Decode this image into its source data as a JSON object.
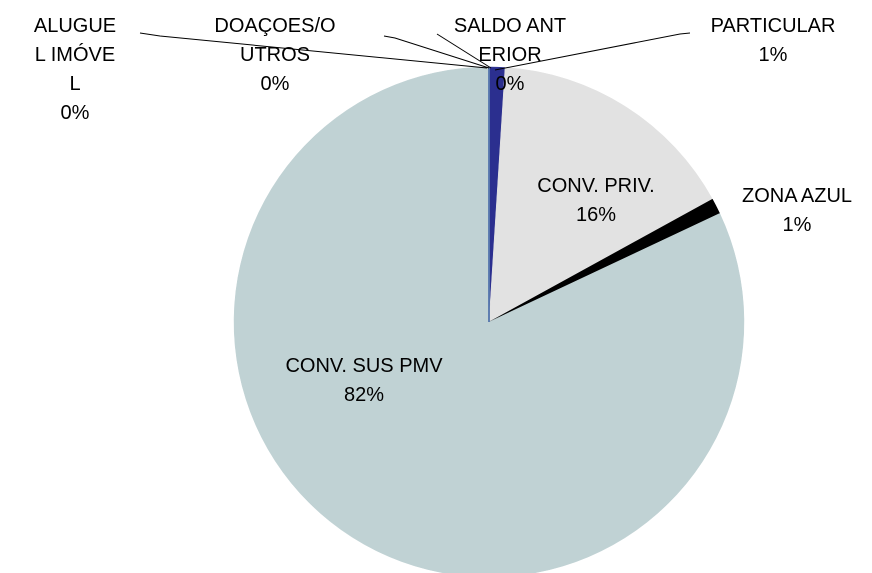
{
  "chart_data": {
    "type": "pie",
    "categories": [
      "PARTICULAR",
      "CONV. PRIV.",
      "ZONA AZUL",
      "CONV. SUS PMV",
      "ALUGUEL IMÓVEL",
      "DOAÇOES/OUTROS",
      "SALDO ANTERIOR"
    ],
    "values": [
      1,
      16,
      1,
      82,
      0,
      0,
      0
    ],
    "value_labels": [
      "1%",
      "16%",
      "1%",
      "82%",
      "0%",
      "0%",
      "0%"
    ],
    "colors": [
      "#2b2f8f",
      "#e2e2e2",
      "#000000",
      "#c0d2d4",
      "#5a7fb0",
      "#8fb0d0",
      "#4f6fa8"
    ]
  }
}
